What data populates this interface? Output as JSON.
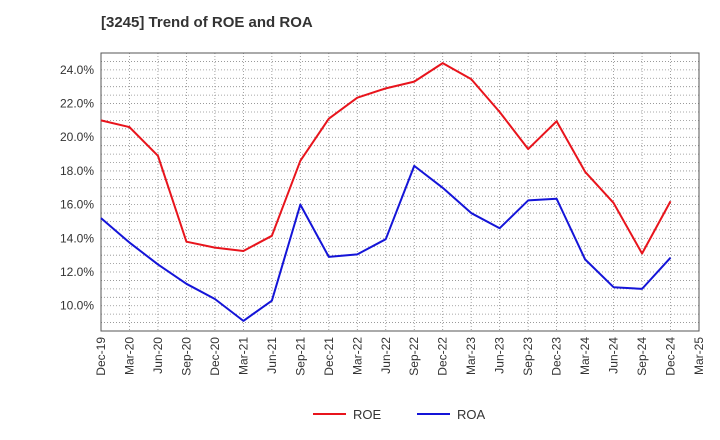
{
  "chart_data": {
    "type": "line",
    "title": "[3245]  Trend of ROE and ROA",
    "xlabel": "",
    "ylabel": "",
    "x": [
      "Dec-19",
      "Mar-20",
      "Jun-20",
      "Sep-20",
      "Dec-20",
      "Mar-21",
      "Jun-21",
      "Sep-21",
      "Dec-21",
      "Mar-22",
      "Jun-22",
      "Sep-22",
      "Dec-22",
      "Mar-23",
      "Jun-23",
      "Sep-23",
      "Dec-23",
      "Mar-24",
      "Jun-24",
      "Sep-24",
      "Dec-24",
      "Mar-25"
    ],
    "ylim": [
      8.5,
      25.0
    ],
    "yticks": [
      10.0,
      12.0,
      14.0,
      16.0,
      18.0,
      20.0,
      22.0,
      24.0
    ],
    "ytick_labels": [
      "10.0%",
      "12.0%",
      "14.0%",
      "16.0%",
      "18.0%",
      "20.0%",
      "22.0%",
      "24.0%"
    ],
    "grid": true,
    "legend_position": "bottom",
    "series": [
      {
        "name": "ROE",
        "color": "#e8141c",
        "values": [
          21.0,
          20.6,
          18.9,
          13.8,
          13.45,
          13.25,
          14.15,
          18.6,
          21.1,
          22.35,
          22.9,
          23.3,
          24.4,
          23.45,
          21.5,
          19.3,
          20.95,
          17.95,
          16.1,
          13.1,
          16.2,
          null
        ]
      },
      {
        "name": "ROA",
        "color": "#1414d8",
        "values": [
          15.2,
          13.75,
          12.45,
          11.3,
          10.4,
          9.1,
          10.3,
          16.0,
          12.9,
          13.05,
          13.95,
          18.3,
          17.0,
          15.5,
          14.6,
          16.25,
          16.35,
          12.75,
          11.1,
          11.0,
          12.85,
          null
        ]
      }
    ]
  }
}
